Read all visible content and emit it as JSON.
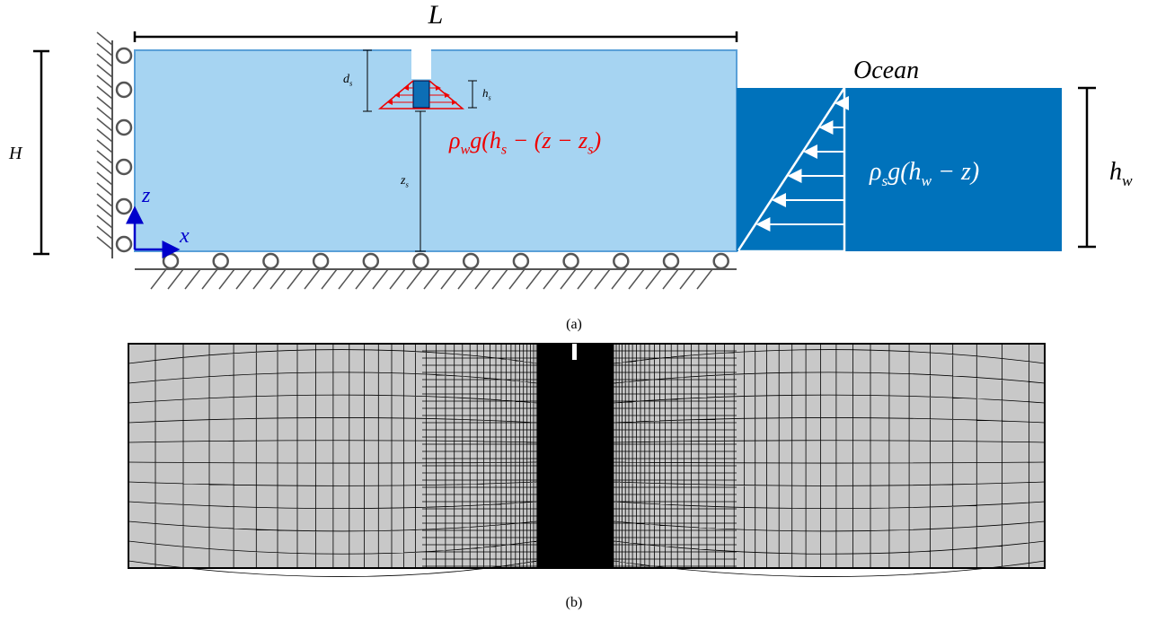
{
  "labels": {
    "L": [
      "L"
    ],
    "H": [
      "H"
    ],
    "d_s": [
      "d",
      "s"
    ],
    "h_s": [
      "h",
      "s"
    ],
    "z_s": [
      "z",
      "s"
    ],
    "z": [
      "z"
    ],
    "x": [
      "x"
    ],
    "ice_pressure": [
      "ρ",
      "w",
      "g(h",
      "s",
      " − (z − z",
      "s",
      ")"
    ],
    "ocean": [
      "Ocean"
    ],
    "ocean_pressure": [
      "ρ",
      "s",
      "g(h",
      "w",
      " − z)"
    ],
    "h_w": [
      "h",
      "w"
    ]
  },
  "captions": {
    "a": "(a)",
    "b": "(b)"
  }
}
